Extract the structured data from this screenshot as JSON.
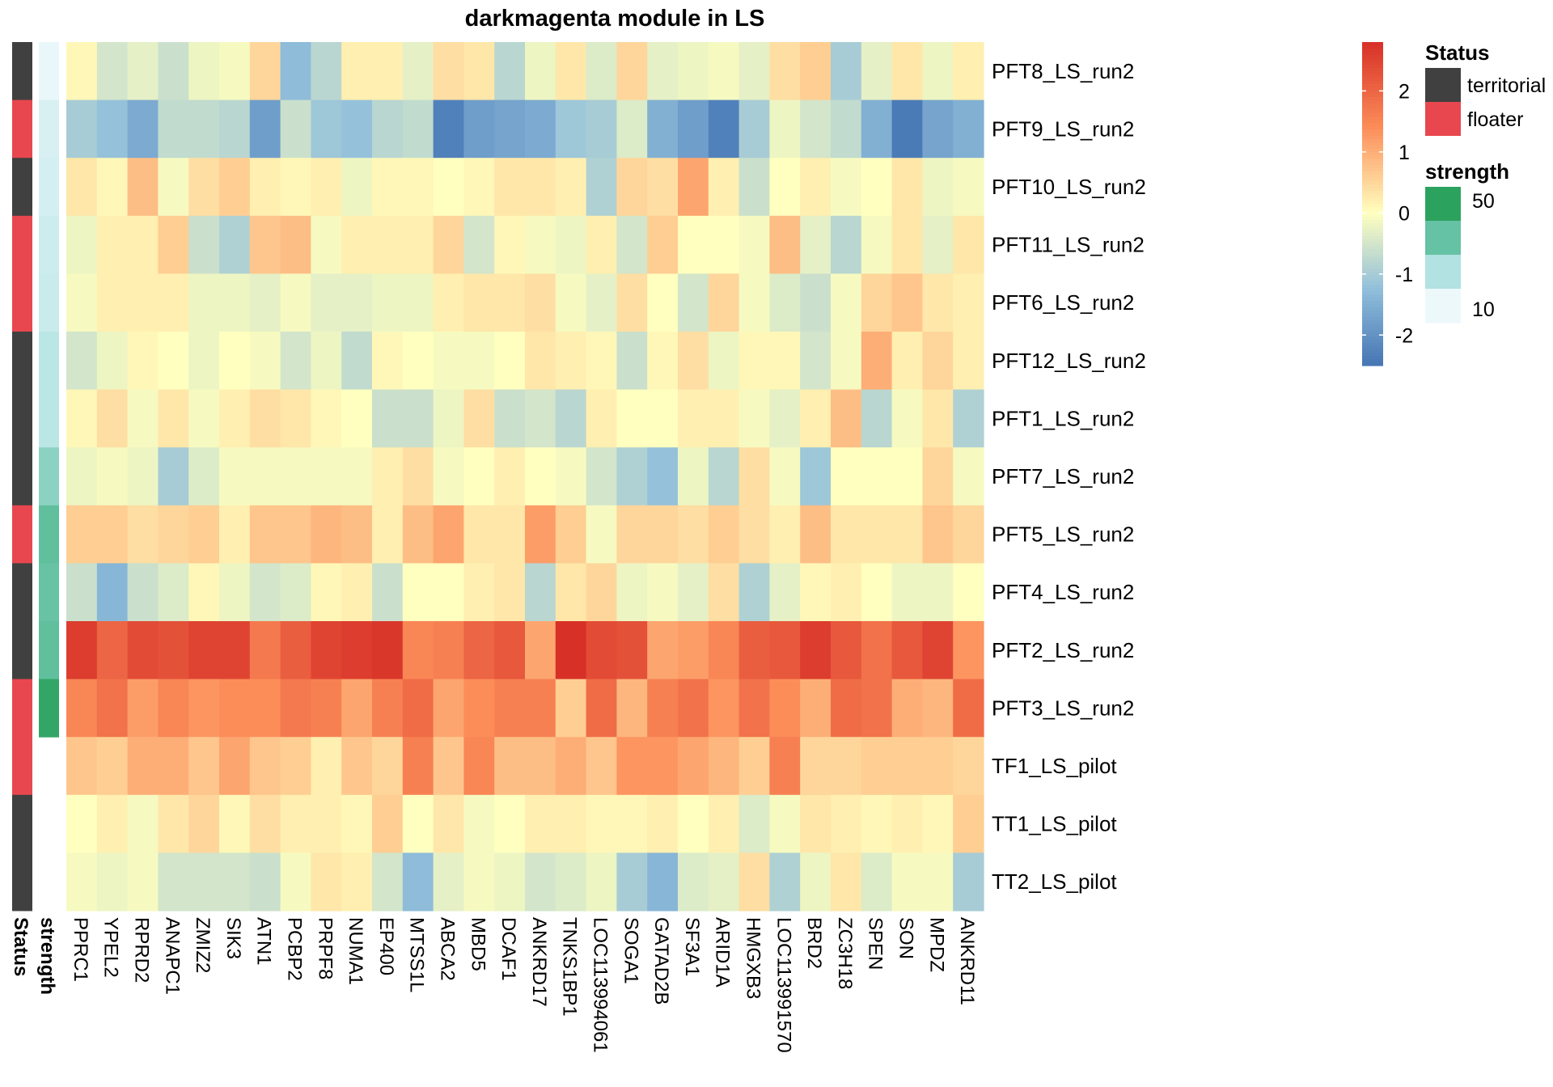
{
  "chart_data": {
    "type": "heatmap",
    "title": "darkmagenta module in LS",
    "columns": [
      "PPRC1",
      "YPEL2",
      "RPRD2",
      "ANAPC1",
      "ZMIZ2",
      "SIK3",
      "ATN1",
      "PCBP2",
      "PRPF8",
      "NUMA1",
      "EP400",
      "MTSS1L",
      "ABCA2",
      "MBD5",
      "DCAF1",
      "ANKRD17",
      "TNKS1BP1",
      "LOC113994061",
      "SOGA1",
      "GATAD2B",
      "SF3A1",
      "ARID1A",
      "HMGXB3",
      "LOC113991570",
      "BRD2",
      "ZC3H18",
      "SPEN",
      "SON",
      "MPDZ",
      "ANKRD11"
    ],
    "rows": [
      "PFT8_LS_run2",
      "PFT9_LS_run2",
      "PFT10_LS_run2",
      "PFT11_LS_run2",
      "PFT6_LS_run2",
      "PFT12_LS_run2",
      "PFT1_LS_run2",
      "PFT7_LS_run2",
      "PFT5_LS_run2",
      "PFT4_LS_run2",
      "PFT2_LS_run2",
      "PFT3_LS_run2",
      "TF1_LS_pilot",
      "TT1_LS_pilot",
      "TT2_LS_pilot"
    ],
    "values": [
      [
        0.1,
        -0.5,
        -0.3,
        -0.6,
        -0.2,
        -0.1,
        0.5,
        -1.3,
        -0.8,
        0.2,
        0.2,
        -0.3,
        0.4,
        0.3,
        -0.8,
        -0.2,
        0.3,
        -0.4,
        0.5,
        -0.3,
        -0.2,
        -0.1,
        -0.3,
        0.4,
        0.6,
        -1.0,
        -0.3,
        0.3,
        -0.2,
        0.2
      ],
      [
        -1.0,
        -1.2,
        -1.6,
        -0.7,
        -0.7,
        -0.8,
        -1.8,
        -0.6,
        -1.1,
        -1.2,
        -0.8,
        -0.7,
        -2.3,
        -1.8,
        -1.7,
        -1.6,
        -1.1,
        -1.0,
        -0.4,
        -1.5,
        -1.8,
        -2.3,
        -1.0,
        -0.2,
        -0.5,
        -0.7,
        -1.5,
        -2.4,
        -1.7,
        -1.5
      ],
      [
        0.3,
        0.1,
        0.8,
        -0.1,
        0.4,
        0.6,
        0.2,
        0.1,
        0.2,
        -0.2,
        0.1,
        0.1,
        0.0,
        0.1,
        0.3,
        0.3,
        0.2,
        -0.9,
        0.5,
        0.4,
        1.1,
        0.2,
        -0.6,
        0.0,
        0.2,
        -0.1,
        0.0,
        0.3,
        -0.2,
        -0.1
      ],
      [
        -0.2,
        0.2,
        0.2,
        0.6,
        -0.6,
        -0.9,
        0.7,
        0.8,
        -0.1,
        0.2,
        0.2,
        0.2,
        0.5,
        -0.5,
        0.1,
        -0.1,
        -0.2,
        0.2,
        -0.5,
        0.6,
        0.0,
        0.0,
        -0.1,
        0.8,
        -0.3,
        -0.8,
        -0.1,
        0.3,
        -0.3,
        0.3
      ],
      [
        -0.1,
        0.2,
        0.2,
        0.2,
        -0.2,
        -0.2,
        -0.3,
        -0.1,
        -0.3,
        -0.3,
        -0.2,
        -0.2,
        0.2,
        0.3,
        0.3,
        0.4,
        -0.1,
        -0.3,
        0.4,
        0.0,
        -0.5,
        0.5,
        -0.1,
        -0.4,
        -0.6,
        -0.1,
        0.5,
        0.7,
        0.3,
        0.2
      ],
      [
        -0.5,
        -0.2,
        0.1,
        0.0,
        -0.2,
        0.0,
        -0.1,
        -0.5,
        -0.2,
        -0.7,
        0.1,
        0.0,
        -0.1,
        -0.1,
        0.0,
        0.3,
        0.2,
        0.1,
        -0.6,
        0.1,
        0.4,
        -0.2,
        0.1,
        0.1,
        -0.5,
        -0.1,
        1.0,
        0.2,
        0.5,
        0.2
      ],
      [
        0.1,
        0.4,
        -0.1,
        0.3,
        -0.1,
        0.2,
        0.4,
        0.3,
        0.1,
        0.0,
        -0.6,
        -0.6,
        -0.2,
        0.4,
        -0.6,
        -0.5,
        -0.8,
        0.2,
        0.0,
        0.0,
        0.2,
        0.2,
        -0.1,
        -0.3,
        0.2,
        0.8,
        -0.8,
        -0.1,
        0.3,
        -0.9
      ],
      [
        -0.2,
        -0.1,
        -0.2,
        -1.0,
        -0.4,
        -0.1,
        -0.1,
        -0.1,
        -0.1,
        -0.1,
        0.2,
        0.4,
        -0.1,
        0.0,
        0.2,
        0.0,
        -0.1,
        -0.5,
        -0.9,
        -1.2,
        -0.2,
        -0.8,
        0.4,
        -0.1,
        -1.1,
        0.0,
        0.0,
        0.0,
        0.5,
        -0.1
      ],
      [
        0.6,
        0.6,
        0.4,
        0.5,
        0.6,
        0.2,
        0.7,
        0.7,
        0.9,
        0.8,
        0.2,
        0.8,
        1.1,
        0.3,
        0.3,
        1.2,
        0.6,
        -0.1,
        0.5,
        0.5,
        0.4,
        0.6,
        0.4,
        0.2,
        0.8,
        0.3,
        0.3,
        0.3,
        0.7,
        0.5
      ],
      [
        -0.6,
        -1.4,
        -0.6,
        -0.4,
        0.1,
        -0.2,
        -0.5,
        -0.4,
        0.1,
        0.2,
        -0.6,
        0.0,
        0.0,
        0.2,
        0.3,
        -0.8,
        0.3,
        0.5,
        -0.2,
        -0.1,
        -0.3,
        0.4,
        -0.9,
        -0.3,
        0.1,
        0.2,
        0.0,
        -0.2,
        -0.2,
        0.0
      ],
      [
        2.6,
        2.0,
        2.4,
        2.3,
        2.5,
        2.5,
        1.7,
        2.1,
        2.5,
        2.6,
        2.7,
        1.5,
        1.6,
        2.0,
        2.2,
        1.1,
        2.8,
        2.4,
        2.3,
        1.1,
        1.2,
        1.5,
        2.1,
        2.2,
        2.6,
        2.2,
        1.8,
        2.2,
        2.5,
        1.3
      ],
      [
        1.5,
        1.8,
        1.2,
        1.5,
        1.3,
        1.4,
        1.4,
        1.7,
        1.6,
        1.1,
        1.6,
        1.9,
        1.1,
        1.4,
        1.6,
        1.6,
        0.6,
        1.9,
        0.9,
        1.6,
        1.8,
        1.3,
        1.8,
        1.4,
        1.0,
        1.9,
        1.8,
        1.0,
        0.9,
        1.9
      ],
      [
        0.7,
        0.6,
        1.0,
        1.0,
        0.7,
        1.1,
        0.7,
        0.6,
        0.2,
        0.7,
        0.5,
        1.6,
        0.7,
        1.5,
        0.8,
        0.8,
        1.0,
        0.7,
        1.3,
        1.3,
        1.1,
        0.9,
        0.6,
        1.6,
        0.5,
        0.5,
        0.6,
        0.6,
        0.6,
        0.5
      ],
      [
        0.0,
        0.2,
        -0.1,
        0.3,
        0.5,
        0.1,
        0.4,
        0.2,
        0.2,
        0.1,
        0.6,
        0.0,
        0.3,
        -0.1,
        0.0,
        0.2,
        0.2,
        0.1,
        0.1,
        0.2,
        0.0,
        0.2,
        -0.4,
        -0.1,
        0.3,
        0.2,
        0.1,
        0.2,
        0.1,
        0.6
      ],
      [
        -0.1,
        -0.2,
        -0.1,
        -0.5,
        -0.5,
        -0.5,
        -0.6,
        -0.1,
        0.3,
        0.2,
        -0.5,
        -1.3,
        -0.3,
        -0.1,
        -0.2,
        -0.5,
        -0.4,
        -0.2,
        -1.0,
        -1.4,
        -0.4,
        -0.3,
        0.4,
        -0.9,
        -0.2,
        0.3,
        -0.4,
        -0.1,
        -0.1,
        -1.0
      ]
    ],
    "color_scale": {
      "low": "#4575B4",
      "mid": "#FFFFBF",
      "high": "#D73027",
      "range": [
        -2.5,
        2.8
      ],
      "ticks": [
        2,
        1,
        0,
        -1,
        -2
      ]
    },
    "annotations": [
      {
        "name": "Status",
        "values": [
          "territorial",
          "floater",
          "territorial",
          "floater",
          "floater",
          "territorial",
          "territorial",
          "territorial",
          "floater",
          "territorial",
          "territorial",
          "floater",
          "floater",
          "territorial",
          "territorial"
        ],
        "legend_title": "Status",
        "levels": [
          "territorial",
          "floater"
        ],
        "colors": {
          "territorial": "#404040",
          "floater": "#E8474F"
        }
      },
      {
        "name": "strength",
        "values": [
          6,
          11,
          12,
          14,
          15,
          19,
          19,
          30,
          40,
          38,
          40,
          53,
          null,
          null,
          null
        ],
        "legend_title": "strength",
        "range": [
          5,
          55
        ],
        "ticks": [
          50,
          10
        ],
        "colors": [
          "#2CA25F",
          "#66C2A4",
          "#B2E2E2",
          "#EDF8FB"
        ]
      }
    ]
  }
}
